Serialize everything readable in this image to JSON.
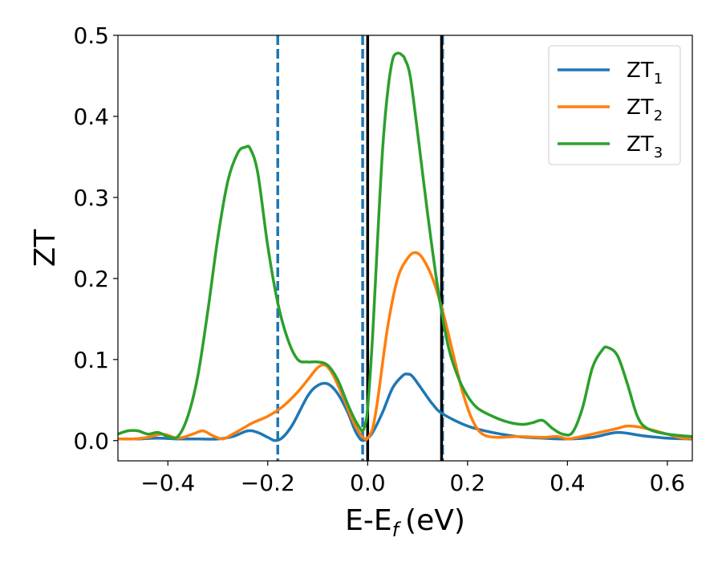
{
  "chart_data": {
    "type": "line",
    "title": "",
    "xlabel": "E-E",
    "xlabel_sub": "f",
    "xlabel_unit": "(eV)",
    "ylabel": "ZT",
    "xlim": [
      -0.5,
      0.65
    ],
    "ylim": [
      -0.025,
      0.5
    ],
    "xticks": [
      -0.4,
      -0.2,
      0.0,
      0.2,
      0.4,
      0.6
    ],
    "xtick_labels": [
      "−0.4",
      "−0.2",
      "0.0",
      "0.2",
      "0.4",
      "0.6"
    ],
    "yticks": [
      0.0,
      0.1,
      0.2,
      0.3,
      0.4,
      0.5
    ],
    "ytick_labels": [
      "0.0",
      "0.1",
      "0.2",
      "0.3",
      "0.4",
      "0.5"
    ],
    "grid": false,
    "legend_position": "top-right",
    "vlines": [
      {
        "x": -0.18,
        "style": "dashed",
        "color": "#1f77b4"
      },
      {
        "x": -0.01,
        "style": "dashed",
        "color": "#1f77b4"
      },
      {
        "x": 0.15,
        "style": "dashed",
        "color": "#1f77b4"
      },
      {
        "x": 0.0,
        "style": "solid",
        "color": "#000000"
      },
      {
        "x": 0.148,
        "style": "solid",
        "color": "#000000"
      }
    ],
    "series": [
      {
        "name": "ZT",
        "name_sub": "1",
        "color": "#1f77b4",
        "x": [
          -0.5,
          -0.46,
          -0.42,
          -0.38,
          -0.34,
          -0.3,
          -0.27,
          -0.24,
          -0.22,
          -0.2,
          -0.185,
          -0.17,
          -0.15,
          -0.12,
          -0.1,
          -0.08,
          -0.06,
          -0.04,
          -0.025,
          -0.015,
          -0.01,
          -0.005,
          0.0,
          0.01,
          0.03,
          0.05,
          0.07,
          0.08,
          0.09,
          0.11,
          0.13,
          0.15,
          0.2,
          0.25,
          0.3,
          0.35,
          0.4,
          0.45,
          0.5,
          0.55,
          0.6,
          0.65
        ],
        "y": [
          0.002,
          0.002,
          0.003,
          0.002,
          0.002,
          0.002,
          0.005,
          0.012,
          0.01,
          0.004,
          0.0,
          0.004,
          0.02,
          0.055,
          0.068,
          0.07,
          0.058,
          0.035,
          0.012,
          0.002,
          0.0,
          0.001,
          0.003,
          0.01,
          0.035,
          0.065,
          0.08,
          0.082,
          0.079,
          0.062,
          0.045,
          0.033,
          0.018,
          0.01,
          0.005,
          0.003,
          0.002,
          0.004,
          0.01,
          0.006,
          0.003,
          0.002
        ]
      },
      {
        "name": "ZT",
        "name_sub": "2",
        "color": "#ff7f0e",
        "x": [
          -0.5,
          -0.47,
          -0.44,
          -0.41,
          -0.38,
          -0.35,
          -0.33,
          -0.31,
          -0.29,
          -0.27,
          -0.25,
          -0.23,
          -0.2,
          -0.17,
          -0.14,
          -0.12,
          -0.1,
          -0.085,
          -0.07,
          -0.05,
          -0.03,
          -0.015,
          -0.005,
          0.0,
          0.01,
          0.02,
          0.04,
          0.06,
          0.08,
          0.095,
          0.11,
          0.13,
          0.15,
          0.17,
          0.19,
          0.21,
          0.23,
          0.26,
          0.3,
          0.35,
          0.38,
          0.4,
          0.42,
          0.45,
          0.5,
          0.52,
          0.55,
          0.6,
          0.63,
          0.65
        ],
        "y": [
          0.002,
          0.002,
          0.004,
          0.008,
          0.003,
          0.008,
          0.012,
          0.006,
          0.002,
          0.008,
          0.015,
          0.022,
          0.03,
          0.042,
          0.06,
          0.075,
          0.09,
          0.093,
          0.082,
          0.055,
          0.025,
          0.008,
          0.002,
          0.003,
          0.015,
          0.05,
          0.14,
          0.2,
          0.225,
          0.232,
          0.225,
          0.2,
          0.16,
          0.11,
          0.06,
          0.025,
          0.008,
          0.004,
          0.005,
          0.004,
          0.005,
          0.002,
          0.004,
          0.008,
          0.015,
          0.018,
          0.016,
          0.008,
          0.003,
          0.003
        ]
      },
      {
        "name": "ZT",
        "name_sub": "3",
        "color": "#2ca02c",
        "x": [
          -0.5,
          -0.48,
          -0.46,
          -0.44,
          -0.42,
          -0.4,
          -0.38,
          -0.36,
          -0.34,
          -0.32,
          -0.3,
          -0.28,
          -0.26,
          -0.245,
          -0.235,
          -0.22,
          -0.2,
          -0.18,
          -0.16,
          -0.14,
          -0.12,
          -0.1,
          -0.08,
          -0.06,
          -0.04,
          -0.025,
          -0.015,
          -0.01,
          -0.005,
          0.0,
          0.01,
          0.02,
          0.03,
          0.04,
          0.05,
          0.06,
          0.07,
          0.075,
          0.085,
          0.1,
          0.12,
          0.14,
          0.16,
          0.18,
          0.2,
          0.22,
          0.25,
          0.28,
          0.31,
          0.33,
          0.35,
          0.37,
          0.39,
          0.41,
          0.43,
          0.45,
          0.47,
          0.48,
          0.5,
          0.52,
          0.54,
          0.56,
          0.6,
          0.65
        ],
        "y": [
          0.008,
          0.012,
          0.012,
          0.008,
          0.01,
          0.005,
          0.005,
          0.03,
          0.08,
          0.16,
          0.25,
          0.32,
          0.355,
          0.362,
          0.36,
          0.33,
          0.24,
          0.17,
          0.125,
          0.1,
          0.097,
          0.097,
          0.093,
          0.075,
          0.045,
          0.025,
          0.015,
          0.012,
          0.02,
          0.04,
          0.13,
          0.25,
          0.36,
          0.43,
          0.47,
          0.478,
          0.475,
          0.47,
          0.45,
          0.38,
          0.28,
          0.19,
          0.12,
          0.08,
          0.055,
          0.04,
          0.03,
          0.023,
          0.02,
          0.022,
          0.025,
          0.015,
          0.008,
          0.01,
          0.04,
          0.09,
          0.112,
          0.115,
          0.105,
          0.07,
          0.03,
          0.015,
          0.008,
          0.005
        ]
      }
    ]
  }
}
